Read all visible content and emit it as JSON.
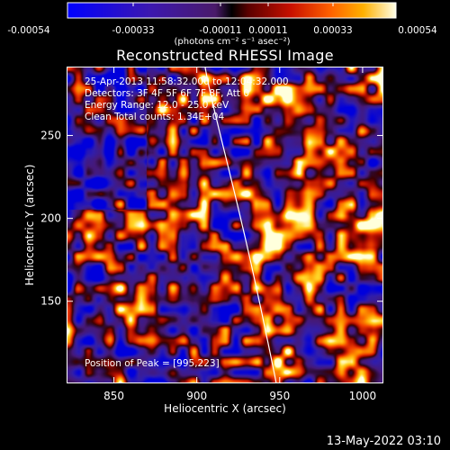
{
  "chart_data": {
    "type": "heatmap",
    "title": "Reconstructed RHESSI Image",
    "xlabel": "Heliocentric X (arcsec)",
    "ylabel": "Heliocentric Y (arcsec)",
    "xlim": [
      822,
      1012
    ],
    "ylim": [
      101,
      291
    ],
    "x_ticks": [
      850,
      900,
      950,
      1000
    ],
    "y_ticks": [
      150,
      200,
      250
    ],
    "colorbar": {
      "ticks": [
        "-0.00054",
        "-0.00033",
        "-0.00011",
        "0.00011",
        "0.00033",
        "0.00054"
      ],
      "range": [
        -0.00054,
        0.00054
      ],
      "unit_label": "(photons cm⁻² s⁻¹ asec⁻²)"
    },
    "info_lines": [
      "25-Apr-2013 11:58:32.000 to 12:04:32.000",
      "Detectors: 3F 4F 5F 6F 7F 8F, Att 0",
      "Energy Range: 12.0 - 25.0 keV",
      "Clean     Total counts: 1.34E+04"
    ],
    "peak_text": "Position of Peak = [995,223]",
    "peak_position": [
      995,
      223
    ],
    "limb_color": "#ffffff"
  },
  "footer": {
    "date": "13-May-2022 03:10"
  }
}
